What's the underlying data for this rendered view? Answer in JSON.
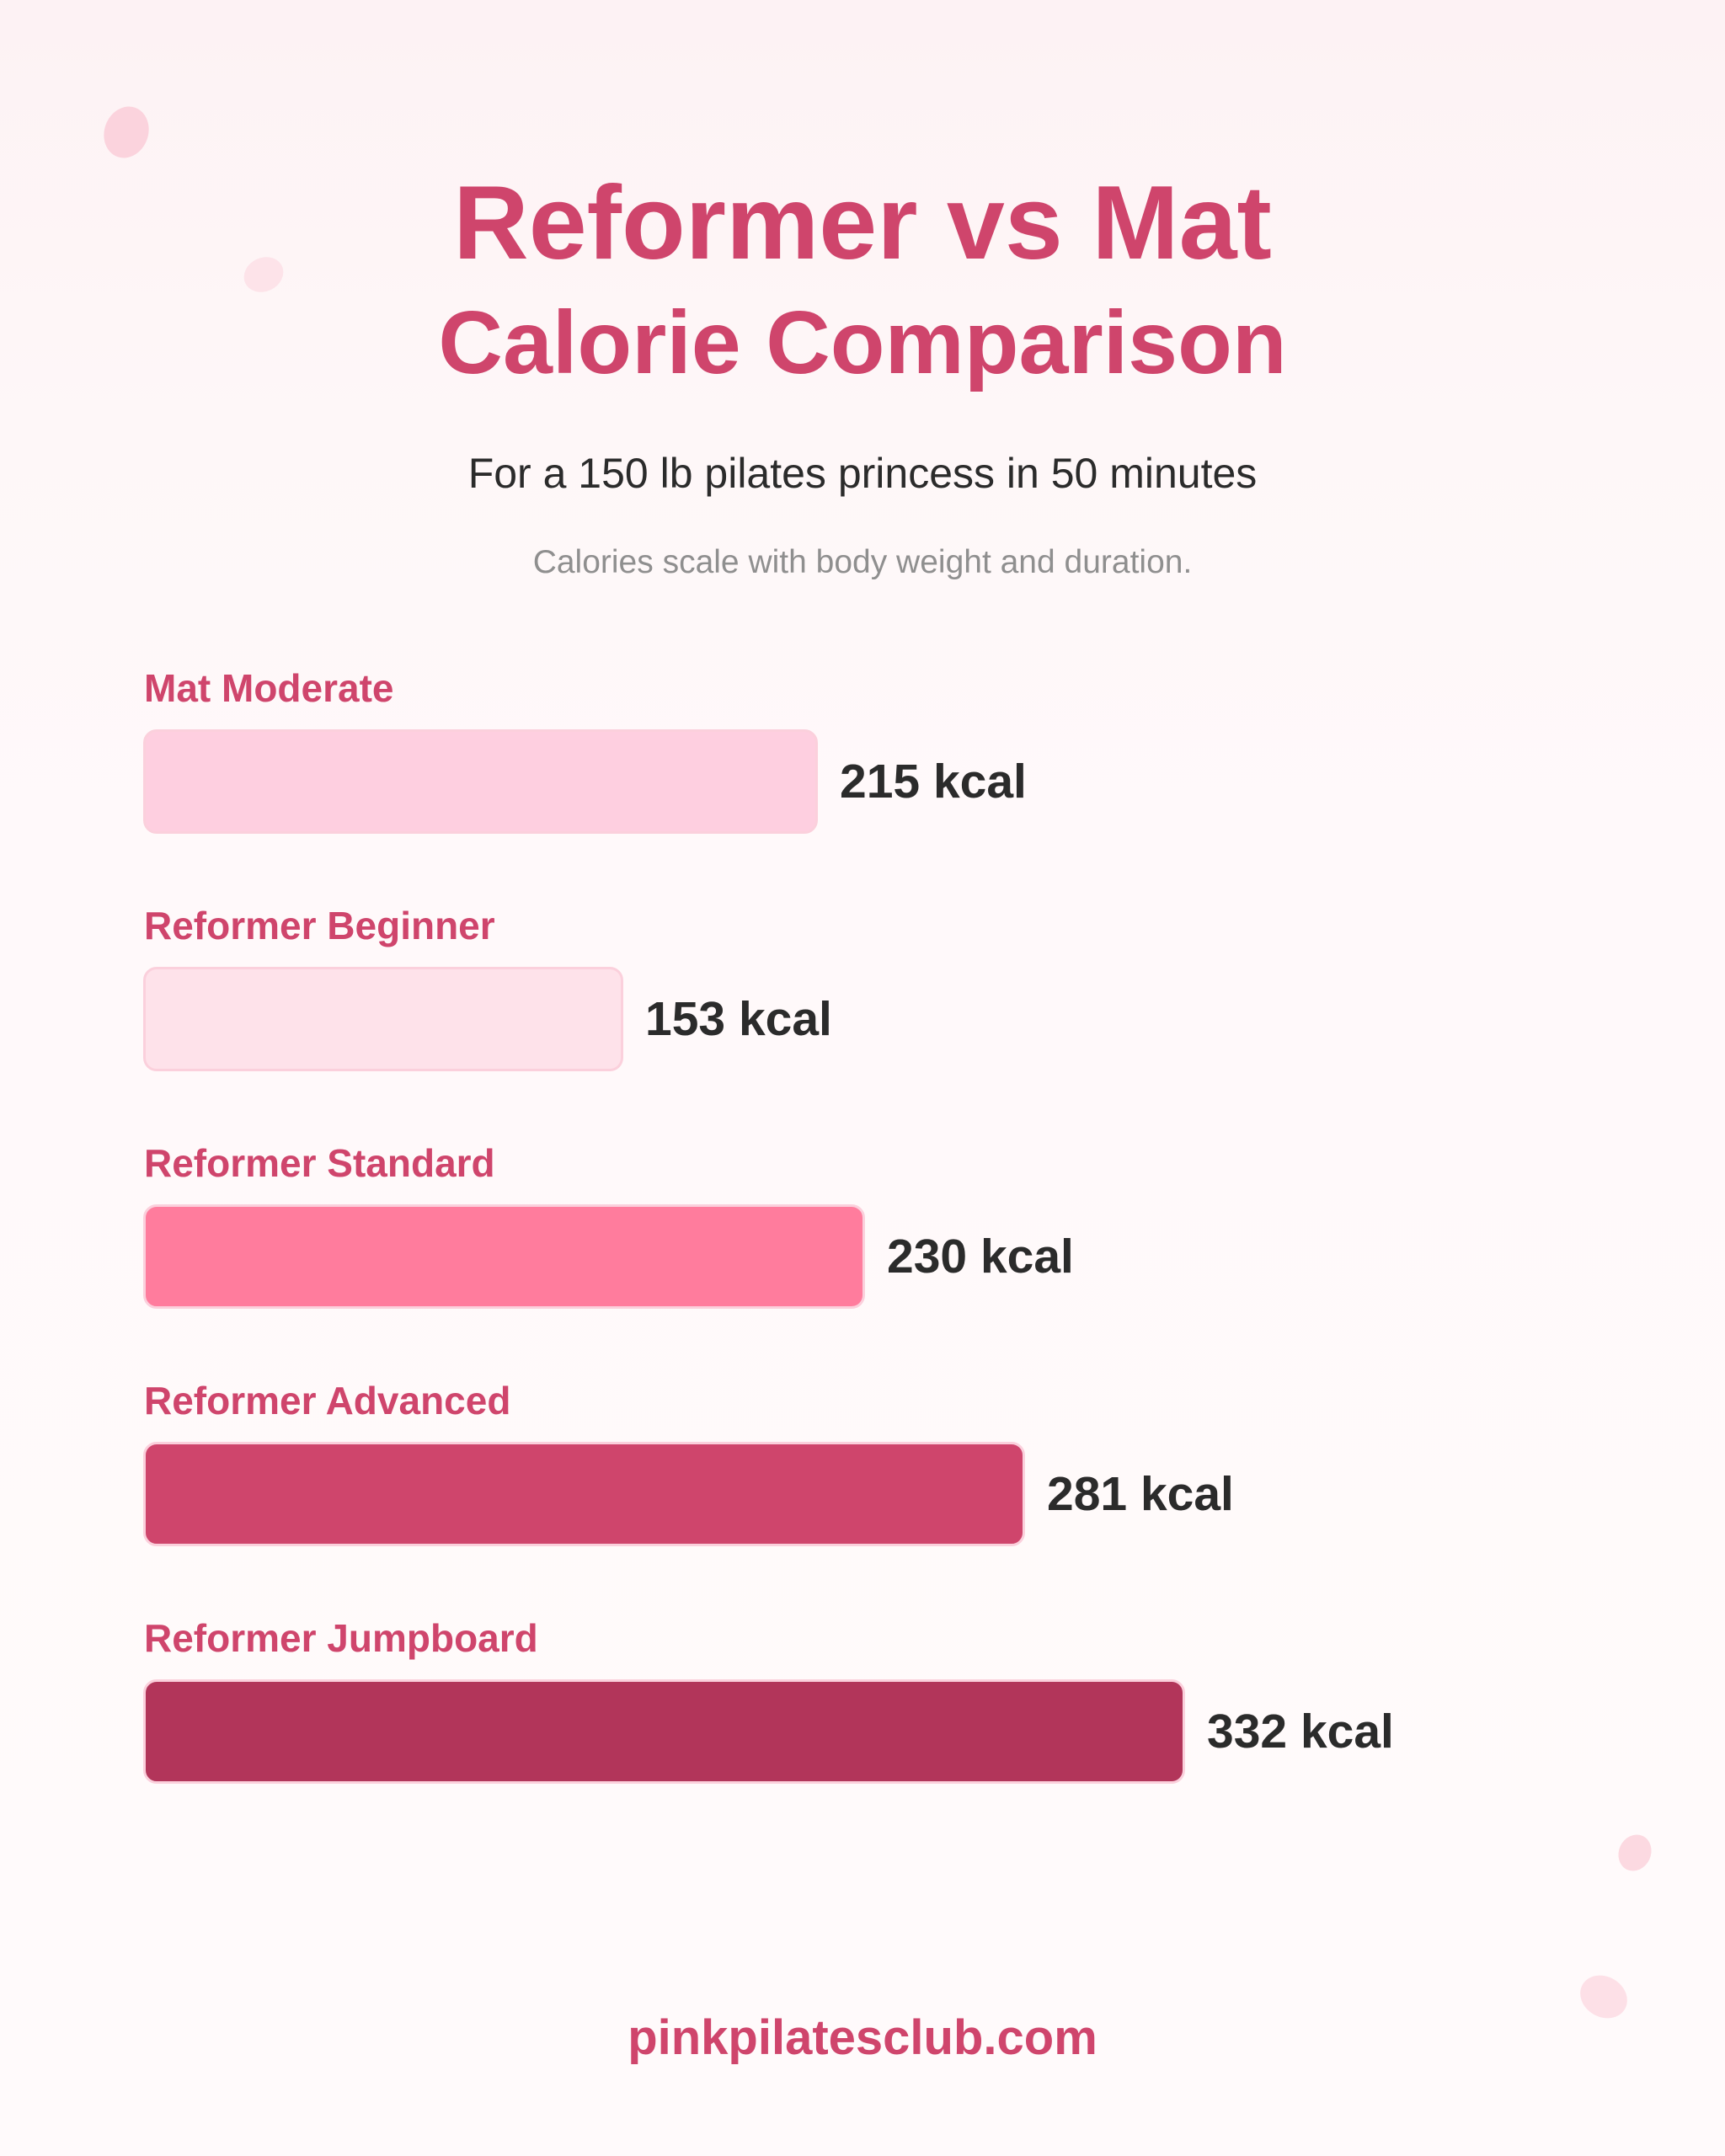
{
  "header": {
    "title_line1": "Reformer vs Mat",
    "title_line2": "Calorie Comparison",
    "subtitle": "For a 150 lb pilates princess in 50 minutes",
    "note": "Calories scale with body weight and duration."
  },
  "chart_data": {
    "type": "bar",
    "orientation": "horizontal",
    "categories": [
      "Mat Moderate",
      "Reformer Beginner",
      "Reformer Standard",
      "Reformer Advanced",
      "Reformer Jumpboard"
    ],
    "values": [
      215,
      153,
      230,
      281,
      332
    ],
    "unit": "kcal",
    "value_labels": [
      "215 kcal",
      "153 kcal",
      "230 kcal",
      "281 kcal",
      "332 kcal"
    ],
    "bar_colors": [
      "#fecfe0",
      "#fee2ea",
      "#ff7c9d",
      "#cf456c",
      "#b2355a"
    ],
    "grid": false,
    "legend": "none"
  },
  "footer": {
    "site": "pinkpilatesclub.com"
  },
  "theme": {
    "accent": "#cf456c",
    "text": "#2b2b2b",
    "muted": "#8f8f8f",
    "petal": "#fbd3dd"
  }
}
